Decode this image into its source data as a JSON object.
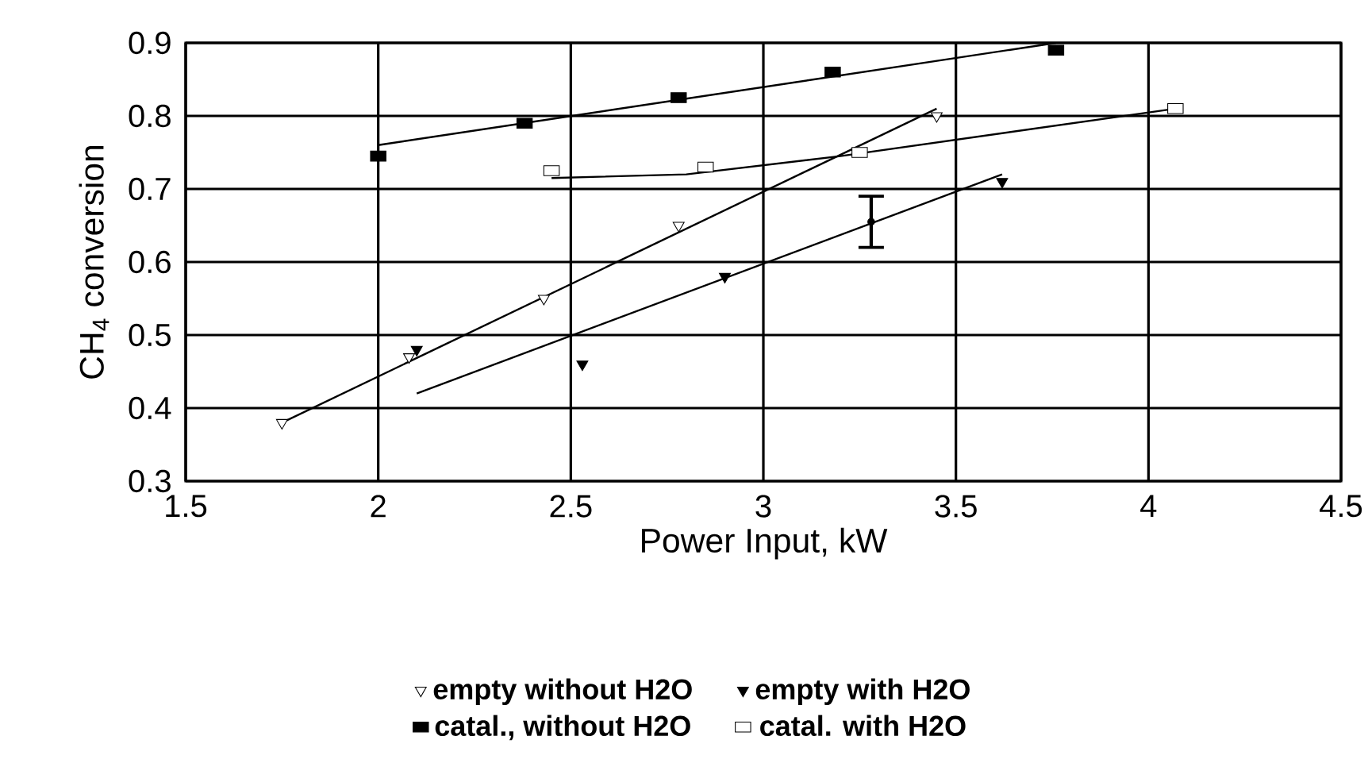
{
  "chart_data": {
    "type": "scatter",
    "xlabel": "Power Input, kW",
    "ylabel": "CH$_{4}$ conversion",
    "xlim": [
      1.5,
      4.5
    ],
    "ylim": [
      0.3,
      0.9
    ],
    "xticks": [
      1.5,
      2,
      2.5,
      3,
      3.5,
      4,
      4.5
    ],
    "yticks": [
      0.3,
      0.4,
      0.5,
      0.6,
      0.7,
      0.8,
      0.9
    ],
    "grid": true,
    "legend": "bottom",
    "series": [
      {
        "name": "empty without H2O",
        "marker": "triangle",
        "color": "#ffffff",
        "x": [
          1.75,
          2.08,
          2.43,
          2.78,
          3.45
        ],
        "values": [
          0.38,
          0.47,
          0.55,
          0.65,
          0.8
        ]
      },
      {
        "name": "empty with H2O",
        "marker": "triangle",
        "color": "#000000",
        "x": [
          2.1,
          2.53,
          2.9,
          3.62
        ],
        "values": [
          0.48,
          0.46,
          0.58,
          0.71
        ]
      },
      {
        "name": "catal., without H2O",
        "marker": "square",
        "color": "#000000",
        "x": [
          2.0,
          2.38,
          2.78,
          3.18,
          3.76
        ],
        "values": [
          0.745,
          0.79,
          0.825,
          0.86,
          0.89
        ]
      },
      {
        "name": "catal. with H2O",
        "marker": "square",
        "color": "#ffffff",
        "x": [
          2.45,
          2.85,
          3.25,
          4.07
        ],
        "values": [
          0.725,
          0.73,
          0.75,
          0.81
        ]
      },
      {
        "type": "line",
        "marker": "none",
        "color": "#000000",
        "x": [
          1.75,
          3.45
        ],
        "values": [
          0.38,
          0.81
        ]
      },
      {
        "type": "line",
        "marker": "none",
        "color": "#000000",
        "x": [
          2.1,
          3.62
        ],
        "values": [
          0.42,
          0.72
        ]
      },
      {
        "type": "line",
        "marker": "none",
        "color": "#000000",
        "x": [
          2.0,
          3.76
        ],
        "values": [
          0.76,
          0.9
        ]
      },
      {
        "type": "line",
        "marker": "none",
        "color": "#000000",
        "x": [
          2.45,
          2.8,
          3.2,
          4.07
        ],
        "values": [
          0.715,
          0.72,
          0.745,
          0.81
        ]
      },
      {
        "marker": "circle",
        "color": "#000000",
        "x": [
          3.28
        ],
        "values": [
          0.655
        ],
        "errors": [
          0.035
        ]
      }
    ]
  }
}
